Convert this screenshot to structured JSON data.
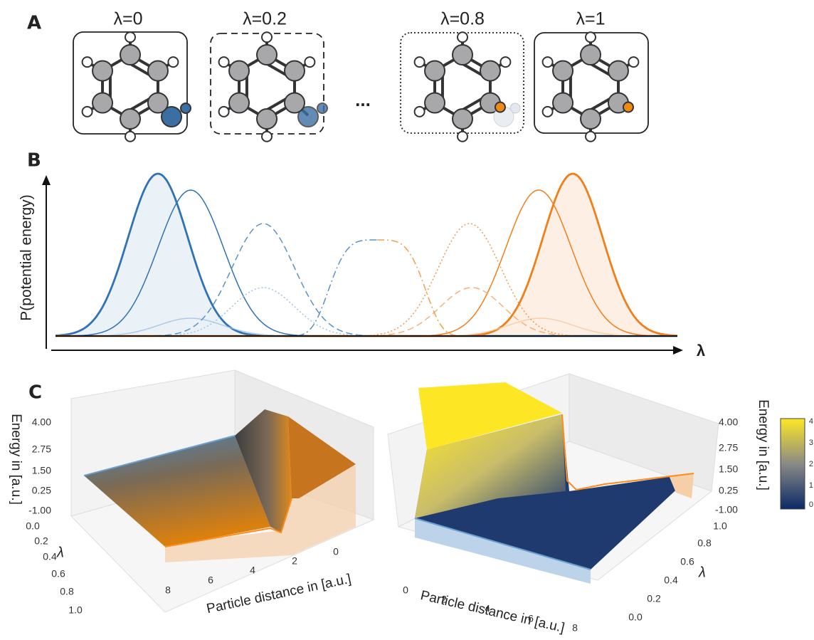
{
  "panel_a": {
    "label": "A",
    "states": [
      "λ=0",
      "λ=0.2",
      "λ=0.8",
      "λ=1"
    ],
    "ellipsis": "..."
  },
  "panel_b": {
    "label": "B",
    "y_label": "P(potential energy)",
    "x_label": "λ"
  },
  "panel_c": {
    "label": "C",
    "left": {
      "z_label": "Energy in [a.u.]",
      "z_ticks": [
        "4.00",
        "2.75",
        "1.50",
        "0.25",
        "-1.00"
      ],
      "y_label": "λ",
      "y_ticks": [
        "0.0",
        "0.2",
        "0.4",
        "0.6",
        "0.8",
        "1.0"
      ],
      "x_label": "Particle distance in [a.u.]",
      "x_ticks": [
        "8",
        "6",
        "4",
        "2",
        "0"
      ]
    },
    "right": {
      "z_label": "Energy in [a.u.]",
      "z_ticks": [
        "4.00",
        "2.75",
        "1.50",
        "0.25",
        "-1.00"
      ],
      "y_label": "λ",
      "y_ticks": [
        "1.0",
        "0.8",
        "0.6",
        "0.4",
        "0.2",
        "0.0"
      ],
      "x_label": "Particle distance in [a.u.]",
      "x_ticks": [
        "0",
        "2",
        "4",
        "6",
        "8"
      ]
    },
    "colorbar_ticks": [
      "4",
      "3",
      "2",
      "1",
      "0"
    ]
  }
}
